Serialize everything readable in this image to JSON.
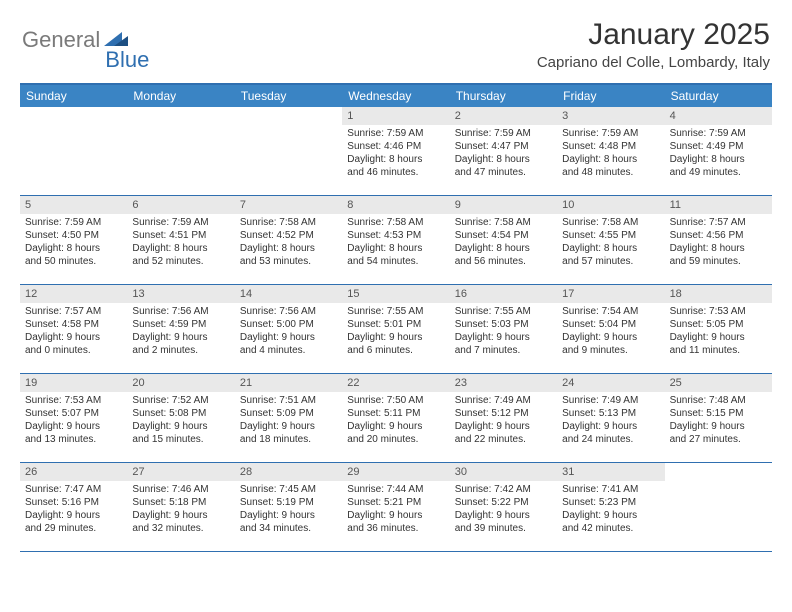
{
  "logo": {
    "text1": "General",
    "text2": "Blue"
  },
  "title": "January 2025",
  "location": "Capriano del Colle, Lombardy, Italy",
  "colors": {
    "header_bg": "#3a84c4",
    "border": "#2f6fb0",
    "daynum_bg": "#e9e9e9",
    "logo_gray": "#7a7a7a",
    "logo_blue": "#2f6fb0"
  },
  "day_names": [
    "Sunday",
    "Monday",
    "Tuesday",
    "Wednesday",
    "Thursday",
    "Friday",
    "Saturday"
  ],
  "weeks": [
    [
      {
        "n": "",
        "sr": "",
        "ss": "",
        "dl1": "",
        "dl2": ""
      },
      {
        "n": "",
        "sr": "",
        "ss": "",
        "dl1": "",
        "dl2": ""
      },
      {
        "n": "",
        "sr": "",
        "ss": "",
        "dl1": "",
        "dl2": ""
      },
      {
        "n": "1",
        "sr": "Sunrise: 7:59 AM",
        "ss": "Sunset: 4:46 PM",
        "dl1": "Daylight: 8 hours",
        "dl2": "and 46 minutes."
      },
      {
        "n": "2",
        "sr": "Sunrise: 7:59 AM",
        "ss": "Sunset: 4:47 PM",
        "dl1": "Daylight: 8 hours",
        "dl2": "and 47 minutes."
      },
      {
        "n": "3",
        "sr": "Sunrise: 7:59 AM",
        "ss": "Sunset: 4:48 PM",
        "dl1": "Daylight: 8 hours",
        "dl2": "and 48 minutes."
      },
      {
        "n": "4",
        "sr": "Sunrise: 7:59 AM",
        "ss": "Sunset: 4:49 PM",
        "dl1": "Daylight: 8 hours",
        "dl2": "and 49 minutes."
      }
    ],
    [
      {
        "n": "5",
        "sr": "Sunrise: 7:59 AM",
        "ss": "Sunset: 4:50 PM",
        "dl1": "Daylight: 8 hours",
        "dl2": "and 50 minutes."
      },
      {
        "n": "6",
        "sr": "Sunrise: 7:59 AM",
        "ss": "Sunset: 4:51 PM",
        "dl1": "Daylight: 8 hours",
        "dl2": "and 52 minutes."
      },
      {
        "n": "7",
        "sr": "Sunrise: 7:58 AM",
        "ss": "Sunset: 4:52 PM",
        "dl1": "Daylight: 8 hours",
        "dl2": "and 53 minutes."
      },
      {
        "n": "8",
        "sr": "Sunrise: 7:58 AM",
        "ss": "Sunset: 4:53 PM",
        "dl1": "Daylight: 8 hours",
        "dl2": "and 54 minutes."
      },
      {
        "n": "9",
        "sr": "Sunrise: 7:58 AM",
        "ss": "Sunset: 4:54 PM",
        "dl1": "Daylight: 8 hours",
        "dl2": "and 56 minutes."
      },
      {
        "n": "10",
        "sr": "Sunrise: 7:58 AM",
        "ss": "Sunset: 4:55 PM",
        "dl1": "Daylight: 8 hours",
        "dl2": "and 57 minutes."
      },
      {
        "n": "11",
        "sr": "Sunrise: 7:57 AM",
        "ss": "Sunset: 4:56 PM",
        "dl1": "Daylight: 8 hours",
        "dl2": "and 59 minutes."
      }
    ],
    [
      {
        "n": "12",
        "sr": "Sunrise: 7:57 AM",
        "ss": "Sunset: 4:58 PM",
        "dl1": "Daylight: 9 hours",
        "dl2": "and 0 minutes."
      },
      {
        "n": "13",
        "sr": "Sunrise: 7:56 AM",
        "ss": "Sunset: 4:59 PM",
        "dl1": "Daylight: 9 hours",
        "dl2": "and 2 minutes."
      },
      {
        "n": "14",
        "sr": "Sunrise: 7:56 AM",
        "ss": "Sunset: 5:00 PM",
        "dl1": "Daylight: 9 hours",
        "dl2": "and 4 minutes."
      },
      {
        "n": "15",
        "sr": "Sunrise: 7:55 AM",
        "ss": "Sunset: 5:01 PM",
        "dl1": "Daylight: 9 hours",
        "dl2": "and 6 minutes."
      },
      {
        "n": "16",
        "sr": "Sunrise: 7:55 AM",
        "ss": "Sunset: 5:03 PM",
        "dl1": "Daylight: 9 hours",
        "dl2": "and 7 minutes."
      },
      {
        "n": "17",
        "sr": "Sunrise: 7:54 AM",
        "ss": "Sunset: 5:04 PM",
        "dl1": "Daylight: 9 hours",
        "dl2": "and 9 minutes."
      },
      {
        "n": "18",
        "sr": "Sunrise: 7:53 AM",
        "ss": "Sunset: 5:05 PM",
        "dl1": "Daylight: 9 hours",
        "dl2": "and 11 minutes."
      }
    ],
    [
      {
        "n": "19",
        "sr": "Sunrise: 7:53 AM",
        "ss": "Sunset: 5:07 PM",
        "dl1": "Daylight: 9 hours",
        "dl2": "and 13 minutes."
      },
      {
        "n": "20",
        "sr": "Sunrise: 7:52 AM",
        "ss": "Sunset: 5:08 PM",
        "dl1": "Daylight: 9 hours",
        "dl2": "and 15 minutes."
      },
      {
        "n": "21",
        "sr": "Sunrise: 7:51 AM",
        "ss": "Sunset: 5:09 PM",
        "dl1": "Daylight: 9 hours",
        "dl2": "and 18 minutes."
      },
      {
        "n": "22",
        "sr": "Sunrise: 7:50 AM",
        "ss": "Sunset: 5:11 PM",
        "dl1": "Daylight: 9 hours",
        "dl2": "and 20 minutes."
      },
      {
        "n": "23",
        "sr": "Sunrise: 7:49 AM",
        "ss": "Sunset: 5:12 PM",
        "dl1": "Daylight: 9 hours",
        "dl2": "and 22 minutes."
      },
      {
        "n": "24",
        "sr": "Sunrise: 7:49 AM",
        "ss": "Sunset: 5:13 PM",
        "dl1": "Daylight: 9 hours",
        "dl2": "and 24 minutes."
      },
      {
        "n": "25",
        "sr": "Sunrise: 7:48 AM",
        "ss": "Sunset: 5:15 PM",
        "dl1": "Daylight: 9 hours",
        "dl2": "and 27 minutes."
      }
    ],
    [
      {
        "n": "26",
        "sr": "Sunrise: 7:47 AM",
        "ss": "Sunset: 5:16 PM",
        "dl1": "Daylight: 9 hours",
        "dl2": "and 29 minutes."
      },
      {
        "n": "27",
        "sr": "Sunrise: 7:46 AM",
        "ss": "Sunset: 5:18 PM",
        "dl1": "Daylight: 9 hours",
        "dl2": "and 32 minutes."
      },
      {
        "n": "28",
        "sr": "Sunrise: 7:45 AM",
        "ss": "Sunset: 5:19 PM",
        "dl1": "Daylight: 9 hours",
        "dl2": "and 34 minutes."
      },
      {
        "n": "29",
        "sr": "Sunrise: 7:44 AM",
        "ss": "Sunset: 5:21 PM",
        "dl1": "Daylight: 9 hours",
        "dl2": "and 36 minutes."
      },
      {
        "n": "30",
        "sr": "Sunrise: 7:42 AM",
        "ss": "Sunset: 5:22 PM",
        "dl1": "Daylight: 9 hours",
        "dl2": "and 39 minutes."
      },
      {
        "n": "31",
        "sr": "Sunrise: 7:41 AM",
        "ss": "Sunset: 5:23 PM",
        "dl1": "Daylight: 9 hours",
        "dl2": "and 42 minutes."
      },
      {
        "n": "",
        "sr": "",
        "ss": "",
        "dl1": "",
        "dl2": ""
      }
    ]
  ]
}
